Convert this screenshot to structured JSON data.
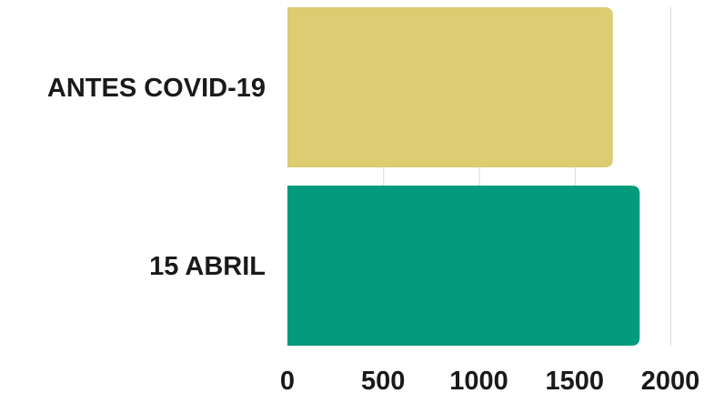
{
  "chart_data": {
    "type": "bar",
    "orientation": "horizontal",
    "categories": [
      "ANTES COVID-19",
      "15 ABRIL"
    ],
    "values": [
      1700,
      1840
    ],
    "colors": [
      "#dccc72",
      "#039b7e"
    ],
    "xlim": [
      0,
      2000
    ],
    "xticks": [
      0,
      500,
      1000,
      1500,
      2000
    ],
    "xtick_labels": [
      "0",
      "500",
      "1000",
      "1500",
      "2000"
    ],
    "grid": true,
    "legend": "none"
  }
}
